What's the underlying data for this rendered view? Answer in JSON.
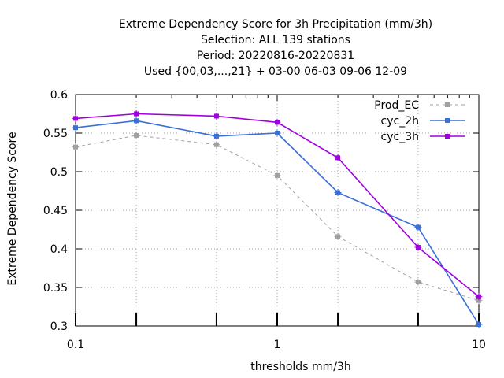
{
  "chart_data": {
    "type": "line",
    "title_lines": [
      "Extreme Dependency Score  for 3h Precipitation (mm/3h)",
      "Selection: ALL    139 stations",
      "Period: 20220816-20220831",
      "Used {00,03,...,21} + 03-00 06-03 09-06 12-09"
    ],
    "xlabel": "thresholds mm/3h",
    "ylabel": "Extreme Dependency Score",
    "x_scale": "log",
    "xlim": [
      0.1,
      10
    ],
    "ylim": [
      0.3,
      0.6
    ],
    "x_ticks": [
      "0.1",
      "1",
      "10"
    ],
    "y_ticks": [
      "0.3",
      "0.35",
      "0.4",
      "0.45",
      "0.5",
      "0.55",
      "0.6"
    ],
    "grid": true,
    "legend_position": "top-right",
    "x": [
      0.1,
      0.2,
      0.5,
      1,
      2,
      5,
      10
    ],
    "series": [
      {
        "name": "Prod_EC",
        "color": "#a0a0a0",
        "dash": true,
        "values": [
          0.532,
          0.547,
          0.535,
          0.495,
          0.416,
          0.357,
          0.333
        ]
      },
      {
        "name": "cyc_2h",
        "color": "#3a6fd8",
        "dash": false,
        "values": [
          0.557,
          0.566,
          0.546,
          0.55,
          0.473,
          0.428,
          0.302
        ]
      },
      {
        "name": "cyc_3h",
        "color": "#a000e0",
        "dash": false,
        "values": [
          0.569,
          0.575,
          0.572,
          0.564,
          0.518,
          0.402,
          0.338
        ]
      }
    ]
  }
}
